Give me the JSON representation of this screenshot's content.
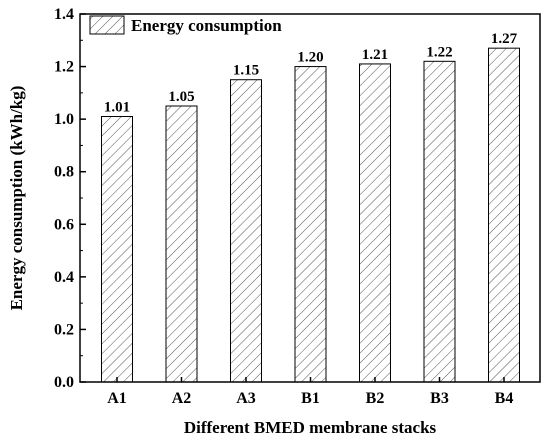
{
  "chart_data": {
    "type": "bar",
    "title": "",
    "xlabel": "Different BMED membrane stacks",
    "ylabel": "Energy consumption (kWh/kg)",
    "categories": [
      "A1",
      "A2",
      "A3",
      "B1",
      "B2",
      "B3",
      "B4"
    ],
    "series": [
      {
        "name": "Energy consumption",
        "values": [
          1.01,
          1.05,
          1.15,
          1.2,
          1.21,
          1.22,
          1.27
        ],
        "labels": [
          "1.01",
          "1.05",
          "1.15",
          "1.20",
          "1.21",
          "1.22",
          "1.27"
        ]
      }
    ],
    "ylim": [
      0.0,
      1.4
    ],
    "yticks": [
      "0.0",
      "0.2",
      "0.4",
      "0.6",
      "0.8",
      "1.0",
      "1.2",
      "1.4"
    ],
    "grid": false,
    "legend": "top-left",
    "bar_fill": "hatched",
    "colors": {
      "bar_outline": "#000000",
      "hatch": "#555555",
      "background": "#ffffff"
    }
  }
}
